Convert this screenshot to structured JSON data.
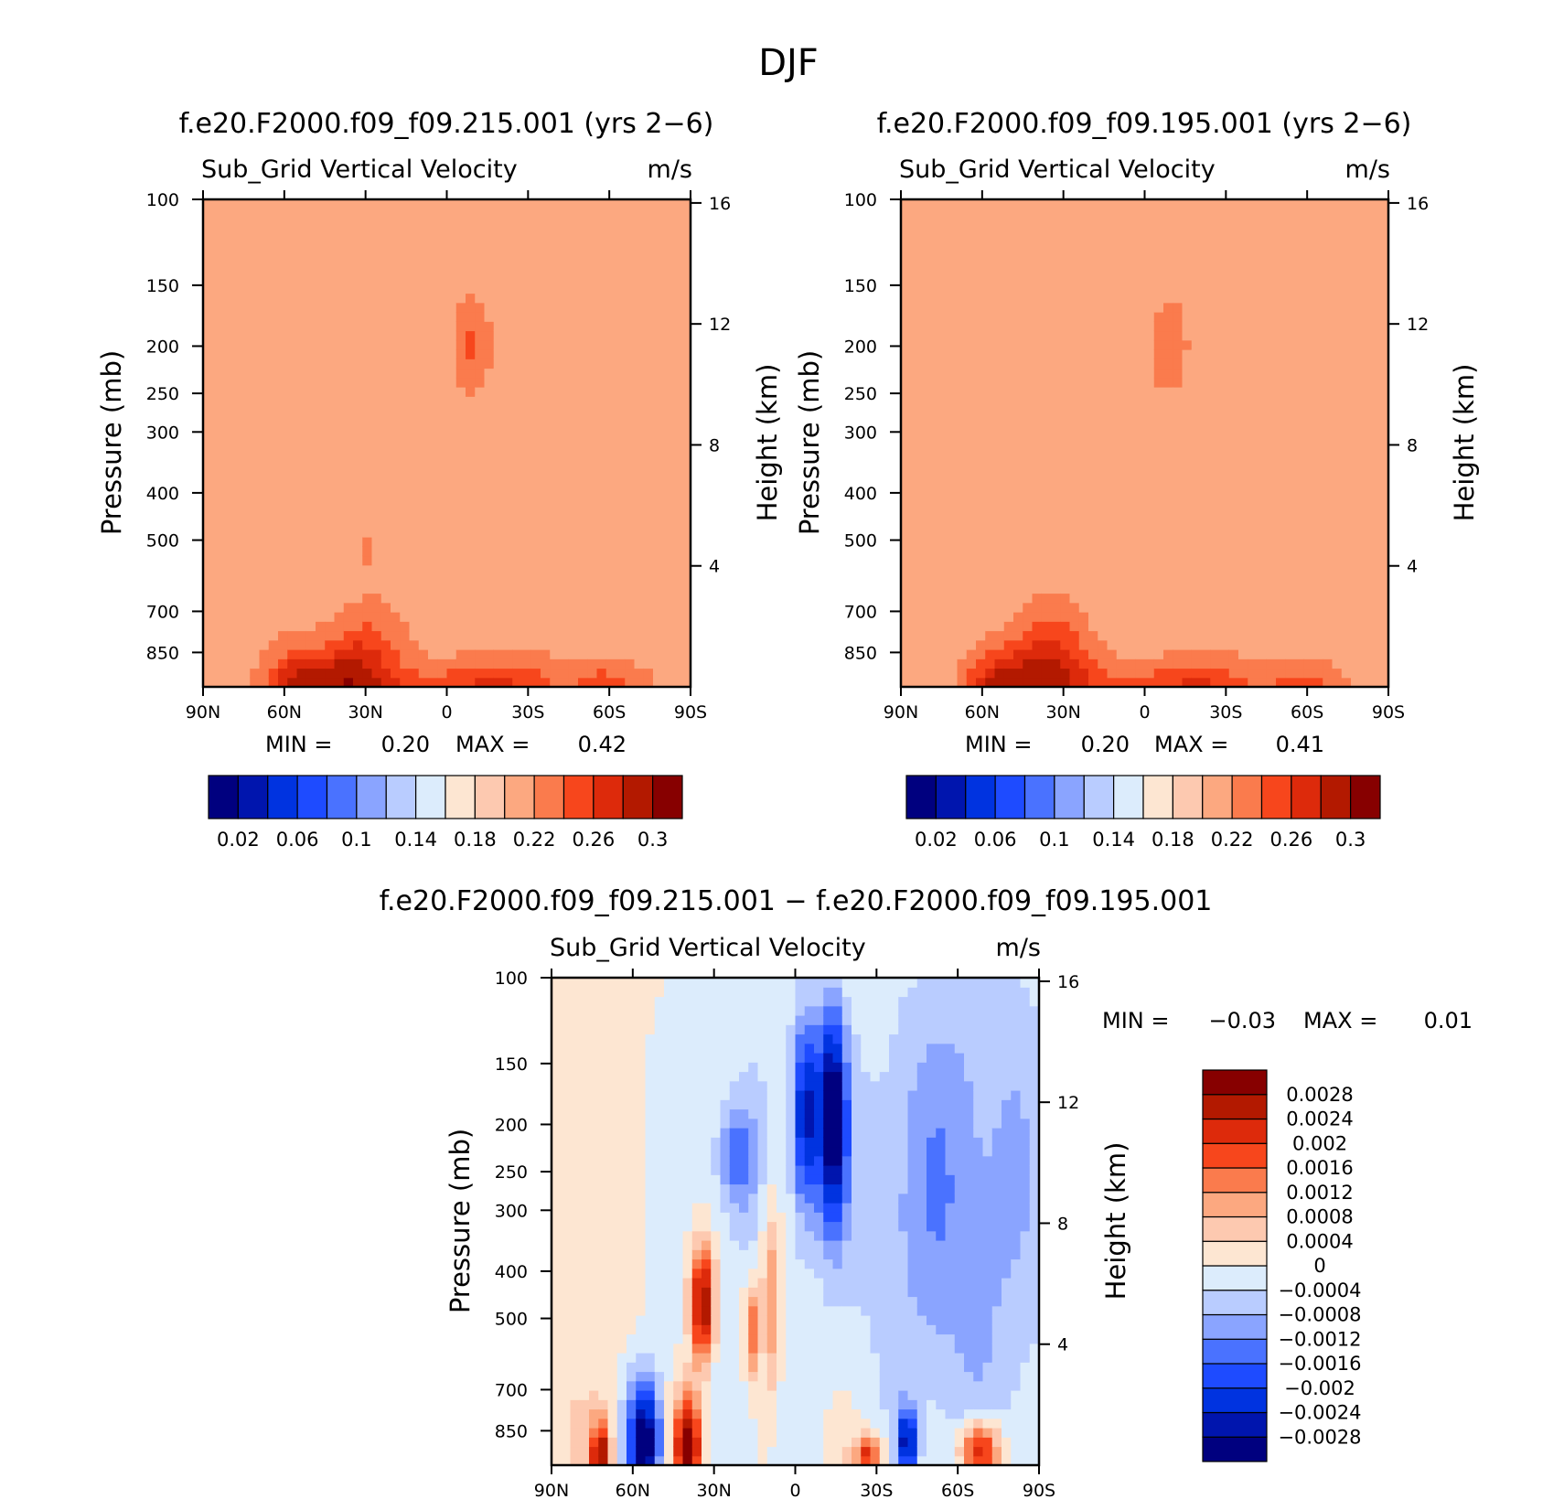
{
  "figure_title": "DJF",
  "chart_data": [
    {
      "type": "heatmap",
      "id": "p1",
      "title": "f.e20.F2000.f09_f09.215.001 (yrs 2−6)",
      "subtitle_left": "Sub_Grid Vertical Velocity",
      "subtitle_right": "m/s",
      "xlabel": "",
      "ylabel": "Pressure (mb)",
      "y2label": "Height (km)",
      "x_ticks": [
        "90N",
        "60N",
        "30N",
        "0",
        "30S",
        "60S",
        "90S"
      ],
      "y_ticks": [
        "100",
        "150",
        "200",
        "250",
        "300",
        "400",
        "500",
        "700",
        "850"
      ],
      "y_tick_values": [
        100,
        150,
        200,
        250,
        300,
        400,
        500,
        700,
        850
      ],
      "y2_ticks": [
        "16",
        "12",
        "8",
        "4"
      ],
      "y2_tick_values": [
        16,
        12,
        8,
        4
      ],
      "ylim": [
        1000,
        100
      ],
      "min_label": "MIN =",
      "min_value": "0.20",
      "max_label": "MAX =",
      "max_value": "0.42",
      "background_level": 0.22,
      "colorbar_colors": [
        "#00007f",
        "#0015ae",
        "#0033e0",
        "#1e4bff",
        "#4a72ff",
        "#8aa4ff",
        "#b9ccff",
        "#dcecfc",
        "#fde6d2",
        "#fdc9b0",
        "#fca880",
        "#fa7b4d",
        "#f7461c",
        "#dd2a0b",
        "#b31900",
        "#870000"
      ],
      "colorbar_labels": [
        "0.02",
        "0.06",
        "0.1",
        "0.14",
        "0.18",
        "0.22",
        "0.26",
        "0.3"
      ]
    },
    {
      "type": "heatmap",
      "id": "p2",
      "title": "f.e20.F2000.f09_f09.195.001 (yrs 2−6)",
      "subtitle_left": "Sub_Grid Vertical Velocity",
      "subtitle_right": "m/s",
      "xlabel": "",
      "ylabel": "Pressure (mb)",
      "y2label": "Height (km)",
      "x_ticks": [
        "90N",
        "60N",
        "30N",
        "0",
        "30S",
        "60S",
        "90S"
      ],
      "y_ticks": [
        "100",
        "150",
        "200",
        "250",
        "300",
        "400",
        "500",
        "700",
        "850"
      ],
      "y_tick_values": [
        100,
        150,
        200,
        250,
        300,
        400,
        500,
        700,
        850
      ],
      "y2_ticks": [
        "16",
        "12",
        "8",
        "4"
      ],
      "y2_tick_values": [
        16,
        12,
        8,
        4
      ],
      "ylim": [
        1000,
        100
      ],
      "min_label": "MIN =",
      "min_value": "0.20",
      "max_label": "MAX =",
      "max_value": "0.41",
      "background_level": 0.22,
      "colorbar_colors": [
        "#00007f",
        "#0015ae",
        "#0033e0",
        "#1e4bff",
        "#4a72ff",
        "#8aa4ff",
        "#b9ccff",
        "#dcecfc",
        "#fde6d2",
        "#fdc9b0",
        "#fca880",
        "#fa7b4d",
        "#f7461c",
        "#dd2a0b",
        "#b31900",
        "#870000"
      ],
      "colorbar_labels": [
        "0.02",
        "0.06",
        "0.1",
        "0.14",
        "0.18",
        "0.22",
        "0.26",
        "0.3"
      ]
    },
    {
      "type": "heatmap",
      "id": "p3",
      "title": "f.e20.F2000.f09_f09.215.001 − f.e20.F2000.f09_f09.195.001",
      "subtitle_left": "Sub_Grid Vertical Velocity",
      "subtitle_right": "m/s",
      "xlabel": "",
      "ylabel": "Pressure (mb)",
      "y2label": "Height (km)",
      "x_ticks": [
        "90N",
        "60N",
        "30N",
        "0",
        "30S",
        "60S",
        "90S"
      ],
      "y_ticks": [
        "100",
        "150",
        "200",
        "250",
        "300",
        "400",
        "500",
        "700",
        "850"
      ],
      "y_tick_values": [
        100,
        150,
        200,
        250,
        300,
        400,
        500,
        700,
        850
      ],
      "y2_ticks": [
        "16",
        "12",
        "8",
        "4"
      ],
      "y2_tick_values": [
        16,
        12,
        8,
        4
      ],
      "ylim": [
        1000,
        100
      ],
      "min_label": "MIN =",
      "min_value": "−0.03",
      "max_label": "MAX =",
      "max_value": "0.01",
      "colorbar_colors": [
        "#00007f",
        "#0015ae",
        "#0033e0",
        "#1e4bff",
        "#4a72ff",
        "#8aa4ff",
        "#b9ccff",
        "#dcecfc",
        "#fde6d2",
        "#fdc9b0",
        "#fca880",
        "#fa7b4d",
        "#f7461c",
        "#dd2a0b",
        "#b31900",
        "#870000"
      ],
      "colorbar_labels": [
        "0.0028",
        "0.0024",
        "0.002",
        "0.0016",
        "0.0012",
        "0.0008",
        "0.0004",
        "0",
        "−0.0004",
        "−0.0008",
        "−0.0012",
        "−0.0016",
        "−0.002",
        "−0.0024",
        "−0.0028"
      ]
    }
  ]
}
